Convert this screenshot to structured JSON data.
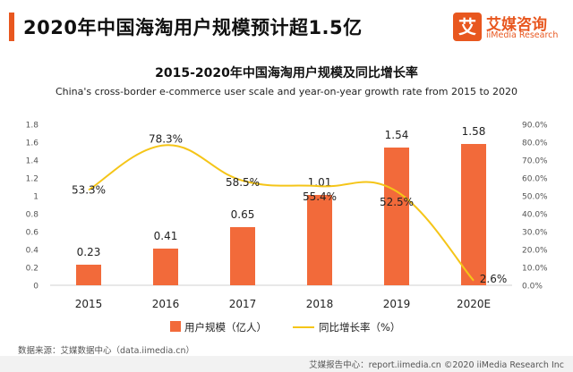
{
  "header": {
    "title": "2020年中国海淘用户规模预计超1.5亿",
    "logo_glyph": "艾",
    "logo_cn": "艾媒咨询",
    "logo_en": "iiMedia Research"
  },
  "chart_data": {
    "type": "bar",
    "title": "2015-2020年中国海淘用户规模及同比增长率",
    "subtitle": "China's cross-border e-commerce user scale and year-on-year growth rate from 2015 to 2020",
    "categories": [
      "2015",
      "2016",
      "2017",
      "2018",
      "2019",
      "2020E"
    ],
    "series": [
      {
        "name": "用户规模（亿人）",
        "type": "bar",
        "axis": "left",
        "color": "#f26a3a",
        "values": [
          0.23,
          0.41,
          0.65,
          1.01,
          1.54,
          1.58
        ],
        "labels": [
          "0.23",
          "0.41",
          "0.65",
          "1.01",
          "1.54",
          "1.58"
        ]
      },
      {
        "name": "同比增长率（%）",
        "type": "line",
        "axis": "right",
        "color": "#f5c518",
        "values": [
          53.3,
          78.3,
          58.5,
          55.4,
          52.5,
          2.6
        ],
        "labels": [
          "53.3%",
          "78.3%",
          "58.5%",
          "55.4%",
          "52.5%",
          "2.6%"
        ]
      }
    ],
    "y_left": {
      "min": 0,
      "max": 1.8,
      "ticks": [
        "0",
        "0.2",
        "0.4",
        "0.6",
        "0.8",
        "1",
        "1.2",
        "1.4",
        "1.6",
        "1.8"
      ]
    },
    "y_right": {
      "min": 0,
      "max": 90,
      "ticks": [
        "0.0%",
        "10.0%",
        "20.0%",
        "30.0%",
        "40.0%",
        "50.0%",
        "60.0%",
        "70.0%",
        "80.0%",
        "90.0%"
      ]
    },
    "legend_position": "bottom",
    "grid": false
  },
  "source": "数据来源：艾媒数据中心（data.iimedia.cn）",
  "footer": "艾媒报告中心：report.iimedia.cn  ©2020  iiMedia Research  Inc"
}
